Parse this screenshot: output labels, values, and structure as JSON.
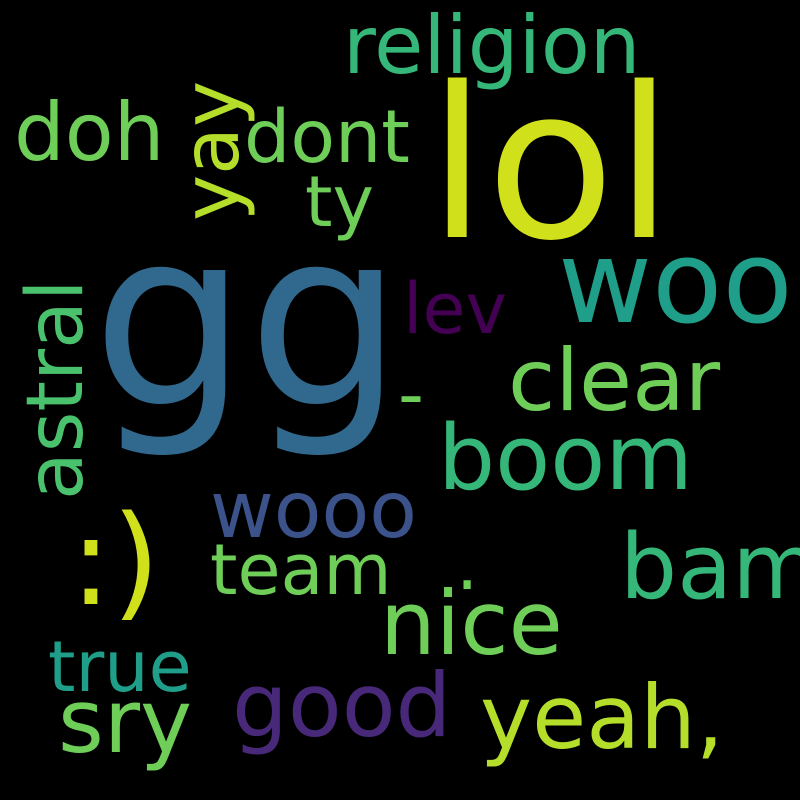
{
  "words": {
    "gg": {
      "text": "gg",
      "color": "#31688e"
    },
    "lol": {
      "text": "lol",
      "color": "#d0e11c"
    },
    "woo": {
      "text": "woo",
      "color": "#1f9e89"
    },
    "religion": {
      "text": "religion",
      "color": "#35b779"
    },
    "doh": {
      "text": "doh",
      "color": "#6ece58"
    },
    "dont": {
      "text": "dont",
      "color": "#6ece58"
    },
    "yay": {
      "text": "yay",
      "color": "#b5de2b"
    },
    "ty": {
      "text": "ty",
      "color": "#6ece58"
    },
    "astral": {
      "text": "astral",
      "color": "#4ac16d"
    },
    "lev": {
      "text": "lev",
      "color": "#440154"
    },
    "dash": {
      "text": "-",
      "color": "#6ece58"
    },
    "clear": {
      "text": "clear",
      "color": "#6ece58"
    },
    "boom": {
      "text": "boom",
      "color": "#35b779"
    },
    "wooo": {
      "text": "wooo",
      "color": "#3b528b"
    },
    "smiley": {
      "text": ":)",
      "color": "#d0e11c"
    },
    "team": {
      "text": "team",
      "color": "#6ece58"
    },
    "dot": {
      "text": ".",
      "color": "#6ece58"
    },
    "bam": {
      "text": "bam",
      "color": "#35b779"
    },
    "nice": {
      "text": "nice",
      "color": "#6ece58"
    },
    "true": {
      "text": "true",
      "color": "#1f9e89"
    },
    "sry": {
      "text": "sry",
      "color": "#6ece58"
    },
    "good": {
      "text": "good",
      "color": "#482878"
    },
    "yeah": {
      "text": "yeah,",
      "color": "#b5de2b"
    }
  }
}
